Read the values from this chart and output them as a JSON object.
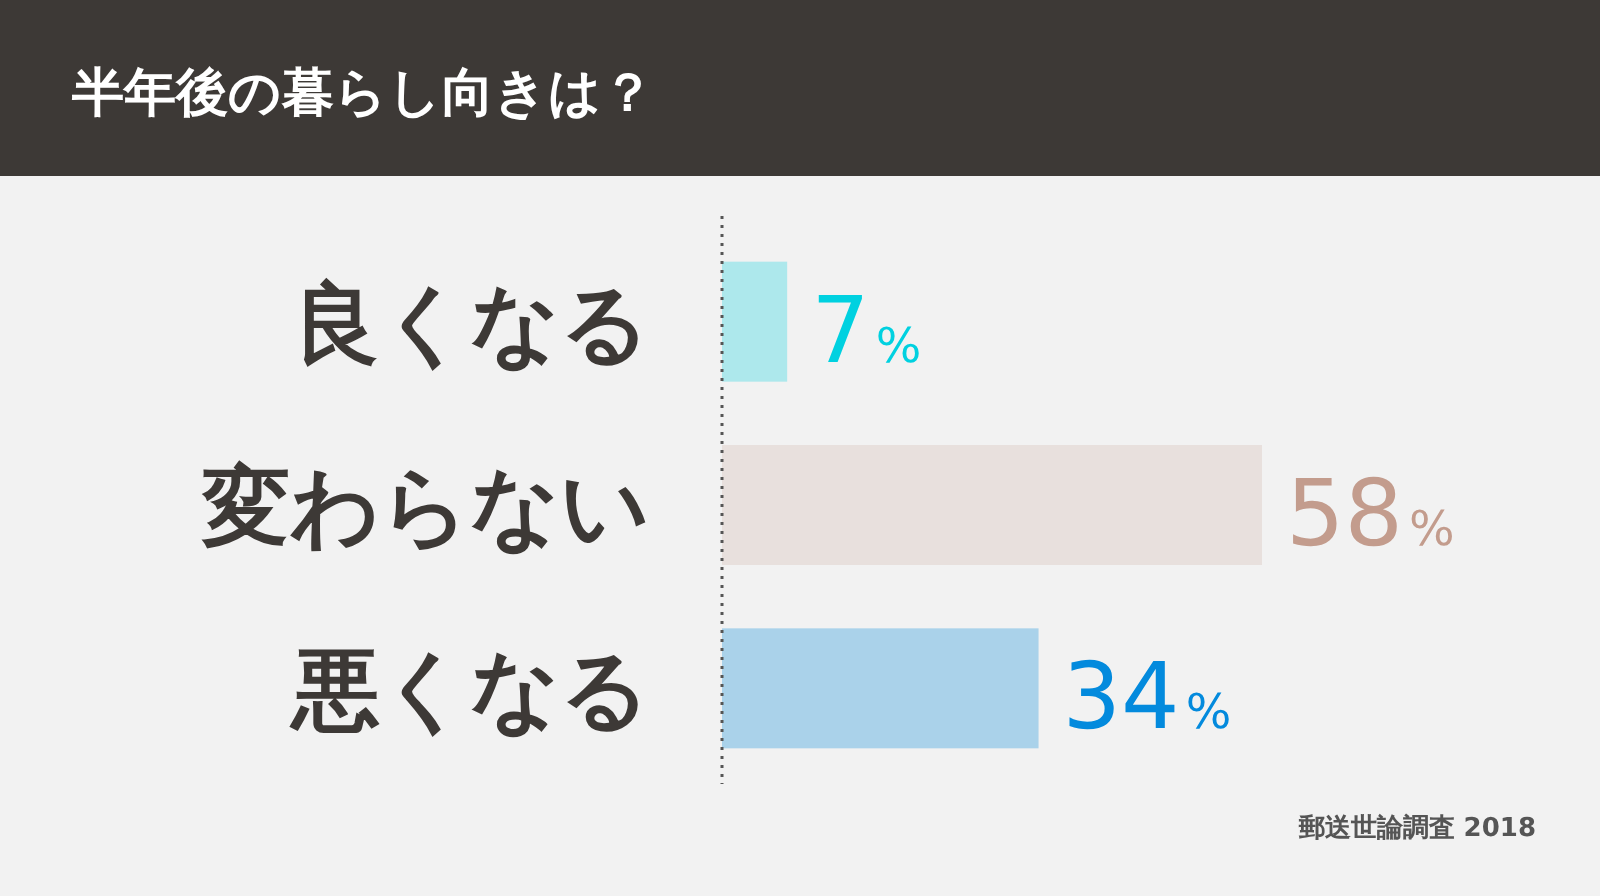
{
  "chart_data": {
    "type": "bar",
    "orientation": "horizontal",
    "title": "半年後の暮らし向きは？",
    "categories": [
      "良くなる",
      "変わらない",
      "悪くなる"
    ],
    "values": [
      7,
      58,
      34
    ],
    "colors": [
      "#ade8ec",
      "#e8e0dd",
      "#aad2ea"
    ],
    "value_labels": [
      "7%",
      "58%",
      "34%"
    ],
    "annotations": [
      "郵送世論調査 2018"
    ]
  }
}
